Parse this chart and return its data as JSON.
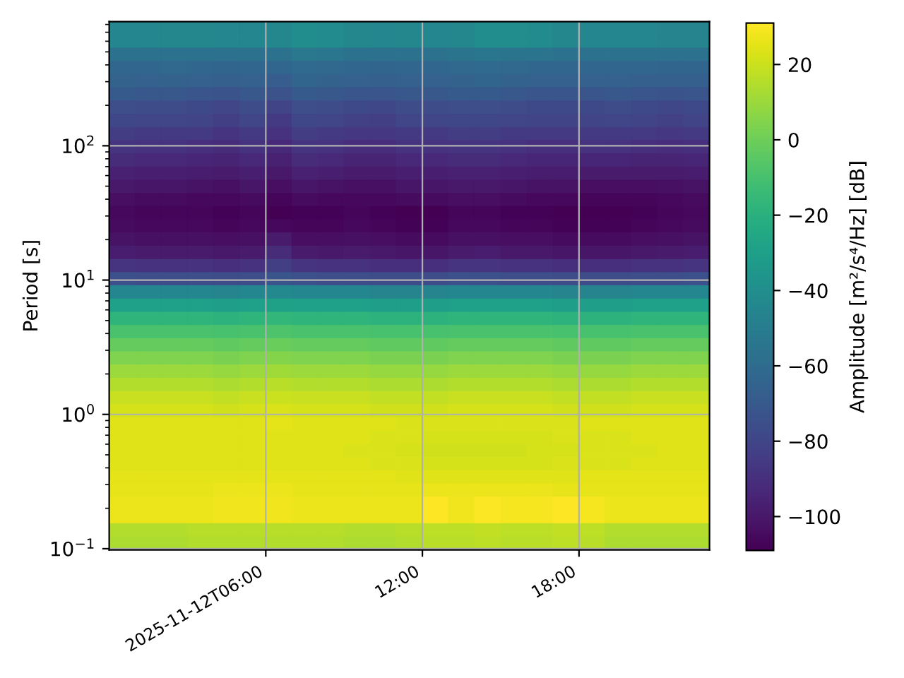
{
  "chart_data": {
    "type": "heatmap",
    "ylabel": "Period [s]",
    "clabel": "Amplitude [m²/s⁴/Hz] [dB]",
    "x": [
      "2025-11-12T00:30",
      "2025-11-12T01:30",
      "2025-11-12T02:30",
      "2025-11-12T03:30",
      "2025-11-12T04:30",
      "2025-11-12T05:30",
      "2025-11-12T06:30",
      "2025-11-12T07:30",
      "2025-11-12T08:30",
      "2025-11-12T09:30",
      "2025-11-12T10:30",
      "2025-11-12T11:30",
      "2025-11-12T12:30",
      "2025-11-12T13:30",
      "2025-11-12T14:30",
      "2025-11-12T15:30",
      "2025-11-12T16:30",
      "2025-11-12T17:30",
      "2025-11-12T18:30",
      "2025-11-12T19:30",
      "2025-11-12T20:30",
      "2025-11-12T21:30",
      "2025-11-12T22:30"
    ],
    "cells": [
      [
        -45,
        -45,
        -44,
        -44,
        -45,
        -45,
        -44,
        -41,
        -42,
        -44,
        -45,
        -44,
        -45,
        -44,
        -41,
        -41,
        -42,
        -44,
        -45,
        -45,
        -45,
        -46,
        -46
      ],
      [
        -45,
        -45,
        -44,
        -44,
        -45,
        -45,
        -44,
        -41,
        -42,
        -44,
        -45,
        -44,
        -45,
        -44,
        -41,
        -41,
        -42,
        -44,
        -45,
        -45,
        -45,
        -46,
        -46
      ],
      [
        -56,
        -57,
        -56,
        -56,
        -57,
        -56,
        -56,
        -53,
        -54,
        -56,
        -57,
        -56,
        -56,
        -55,
        -54,
        -55,
        -55,
        -56,
        -56,
        -56,
        -56,
        -57,
        -57
      ],
      [
        -63,
        -63,
        -62,
        -63,
        -64,
        -63,
        -63,
        -61,
        -62,
        -63,
        -64,
        -63,
        -63,
        -62,
        -61,
        -62,
        -63,
        -63,
        -63,
        -63,
        -63,
        -64,
        -64
      ],
      [
        -65,
        -66,
        -65,
        -66,
        -67,
        -66,
        -68,
        -64,
        -65,
        -66,
        -67,
        -66,
        -66,
        -65,
        -64,
        -65,
        -66,
        -66,
        -66,
        -66,
        -67,
        -67,
        -67
      ],
      [
        -70,
        -71,
        -71,
        -72,
        -73,
        -71,
        -74,
        -70,
        -71,
        -72,
        -72,
        -71,
        -71,
        -70,
        -70,
        -71,
        -72,
        -72,
        -72,
        -71,
        -72,
        -73,
        -72
      ],
      [
        -76,
        -77,
        -77,
        -78,
        -80,
        -77,
        -81,
        -76,
        -77,
        -78,
        -79,
        -77,
        -77,
        -76,
        -76,
        -77,
        -78,
        -78,
        -78,
        -77,
        -78,
        -79,
        -78
      ],
      [
        -79,
        -80,
        -80,
        -81,
        -83,
        -80,
        -85,
        -79,
        -80,
        -82,
        -83,
        -80,
        -80,
        -79,
        -79,
        -80,
        -81,
        -81,
        -81,
        -80,
        -81,
        -82,
        -81
      ],
      [
        -84,
        -85,
        -85,
        -86,
        -88,
        -85,
        -89,
        -84,
        -85,
        -87,
        -87,
        -85,
        -85,
        -84,
        -84,
        -85,
        -86,
        -86,
        -85,
        -85,
        -86,
        -87,
        -86
      ],
      [
        -88,
        -89,
        -89,
        -90,
        -92,
        -89,
        -93,
        -88,
        -89,
        -91,
        -91,
        -89,
        -89,
        -88,
        -88,
        -89,
        -90,
        -90,
        -89,
        -89,
        -90,
        -91,
        -90
      ],
      [
        -92,
        -93,
        -93,
        -94,
        -95,
        -93,
        -96,
        -92,
        -93,
        -95,
        -95,
        -93,
        -93,
        -92,
        -92,
        -93,
        -94,
        -94,
        -94,
        -94,
        -95,
        -95,
        -94
      ],
      [
        -96,
        -97,
        -97,
        -98,
        -99,
        -97,
        -100,
        -96,
        -97,
        -99,
        -99,
        -97,
        -97,
        -96,
        -96,
        -97,
        -98,
        -98,
        -99,
        -99,
        -99,
        -99,
        -98
      ],
      [
        -100,
        -101,
        -101,
        -102,
        -103,
        -101,
        -104,
        -101,
        -102,
        -103,
        -103,
        -101,
        -101,
        -100,
        -100,
        -101,
        -102,
        -102,
        -104,
        -104,
        -104,
        -103,
        -102
      ],
      [
        -104,
        -105,
        -105,
        -106,
        -106,
        -105,
        -107,
        -105,
        -106,
        -106,
        -106,
        -105,
        -105,
        -104,
        -104,
        -105,
        -106,
        -106,
        -107,
        -107,
        -107,
        -106,
        -105
      ],
      [
        -106,
        -107,
        -107,
        -107,
        -108,
        -107,
        -109,
        -108,
        -108,
        -107,
        -108,
        -109,
        -109,
        -107,
        -107,
        -108,
        -108,
        -109,
        -109,
        -109,
        -108,
        -107,
        -106
      ],
      [
        -105,
        -106,
        -106,
        -106,
        -107,
        -106,
        -106,
        -107,
        -107,
        -106,
        -107,
        -108,
        -108,
        -106,
        -106,
        -107,
        -107,
        -108,
        -108,
        -108,
        -107,
        -106,
        -105
      ],
      [
        -102,
        -103,
        -103,
        -103,
        -104,
        -103,
        -99,
        -104,
        -104,
        -103,
        -104,
        -105,
        -105,
        -103,
        -103,
        -104,
        -104,
        -105,
        -105,
        -105,
        -104,
        -103,
        -102
      ],
      [
        -98,
        -99,
        -99,
        -99,
        -100,
        -99,
        -92,
        -99,
        -100,
        -99,
        -100,
        -101,
        -101,
        -99,
        -98,
        -100,
        -100,
        -101,
        -101,
        -101,
        -100,
        -99,
        -98
      ],
      [
        -88,
        -89,
        -89,
        -89,
        -90,
        -89,
        -83,
        -88,
        -89,
        -89,
        -90,
        -90,
        -90,
        -88,
        -88,
        -89,
        -89,
        -90,
        -90,
        -90,
        -89,
        -89,
        -88
      ],
      [
        -75,
        -76,
        -76,
        -76,
        -77,
        -76,
        -72,
        -75,
        -76,
        -76,
        -77,
        -77,
        -77,
        -75,
        -75,
        -76,
        -76,
        -77,
        -77,
        -77,
        -76,
        -76,
        -75
      ],
      [
        -45,
        -45,
        -45,
        -45,
        -46,
        -45,
        -43,
        -45,
        -45,
        -45,
        -46,
        -46,
        -46,
        -45,
        -45,
        -45,
        -45,
        -46,
        -46,
        -46,
        -45,
        -45,
        -45
      ],
      [
        -30,
        -30,
        -30,
        -30,
        -31,
        -30,
        -29,
        -30,
        -30,
        -30,
        -31,
        -31,
        -31,
        -30,
        -30,
        -30,
        -30,
        -31,
        -31,
        -31,
        -30,
        -30,
        -30
      ],
      [
        -18,
        -18,
        -18,
        -18,
        -19,
        -18,
        -17,
        -18,
        -18,
        -18,
        -19,
        -19,
        -19,
        -18,
        -18,
        -18,
        -18,
        -19,
        -19,
        -19,
        -18,
        -18,
        -18
      ],
      [
        -9,
        -9,
        -9,
        -9,
        -10,
        -9,
        -8,
        -9,
        -9,
        -9,
        -10,
        -10,
        -10,
        -9,
        -9,
        -9,
        -9,
        -10,
        -10,
        -10,
        -9,
        -9,
        -9
      ],
      [
        -2,
        -2,
        -2,
        -2,
        -3,
        -2,
        -1,
        -2,
        -2,
        -2,
        -3,
        -3,
        -3,
        -2,
        -2,
        -2,
        -2,
        -3,
        -3,
        -3,
        -2,
        -2,
        -2
      ],
      [
        4,
        4,
        4,
        4,
        3,
        4,
        5,
        4,
        4,
        4,
        3,
        3,
        3,
        4,
        4,
        4,
        4,
        3,
        3,
        3,
        4,
        4,
        4
      ],
      [
        10,
        10,
        10,
        10,
        9,
        10,
        11,
        10,
        10,
        10,
        9,
        9,
        9,
        10,
        10,
        10,
        10,
        9,
        9,
        9,
        10,
        10,
        10
      ],
      [
        15,
        15,
        15,
        15,
        14,
        15,
        16,
        15,
        15,
        15,
        14,
        14,
        14,
        15,
        15,
        15,
        15,
        14,
        14,
        14,
        15,
        15,
        15
      ],
      [
        19,
        19,
        19,
        19,
        18,
        19,
        20,
        19,
        19,
        19,
        18,
        18,
        18,
        19,
        19,
        19,
        19,
        18,
        18,
        18,
        19,
        19,
        19
      ],
      [
        22,
        22,
        22,
        22,
        21,
        22,
        23,
        22,
        22,
        22,
        21,
        21,
        21,
        22,
        22,
        22,
        22,
        21,
        21,
        21,
        22,
        22,
        22
      ],
      [
        24,
        24,
        24,
        24,
        24,
        24,
        25,
        24,
        24,
        24,
        24,
        23,
        23,
        23,
        23,
        23,
        23,
        23,
        24,
        24,
        24,
        24,
        24
      ],
      [
        24,
        24,
        24,
        24,
        24,
        24,
        24,
        24,
        24,
        24,
        23,
        23,
        22,
        22,
        22,
        22,
        22,
        23,
        23,
        23,
        24,
        24,
        24
      ],
      [
        24,
        24,
        24,
        24,
        24,
        24,
        24,
        24,
        24,
        23,
        23,
        22,
        21,
        21,
        21,
        21,
        22,
        22,
        23,
        23,
        23,
        24,
        24
      ],
      [
        24,
        24,
        24,
        24,
        24,
        24,
        24,
        24,
        24,
        24,
        23,
        23,
        22,
        22,
        22,
        22,
        22,
        23,
        23,
        23,
        24,
        24,
        24
      ],
      [
        25,
        25,
        25,
        25,
        25,
        25,
        25,
        25,
        25,
        25,
        25,
        24,
        24,
        24,
        24,
        24,
        24,
        24,
        25,
        25,
        25,
        25,
        25
      ],
      [
        26,
        26,
        26,
        26,
        27,
        27,
        27,
        26,
        26,
        26,
        26,
        26,
        27,
        27,
        27,
        27,
        27,
        26,
        26,
        26,
        26,
        26,
        26
      ],
      [
        27,
        27,
        27,
        27,
        28,
        28,
        28,
        27,
        27,
        27,
        27,
        27,
        31,
        28,
        30,
        29,
        29,
        31,
        29,
        27,
        27,
        27,
        27
      ],
      [
        27,
        27,
        27,
        27,
        28,
        28,
        28,
        27,
        27,
        27,
        27,
        27,
        31,
        28,
        30,
        29,
        29,
        31,
        29,
        27,
        27,
        27,
        27
      ],
      [
        15,
        15,
        15,
        16,
        16,
        16,
        16,
        16,
        16,
        15,
        15,
        16,
        17,
        17,
        18,
        17,
        17,
        18,
        17,
        15,
        15,
        15,
        15
      ],
      [
        14,
        14,
        14,
        15,
        15,
        15,
        15,
        15,
        15,
        14,
        14,
        15,
        16,
        16,
        17,
        16,
        16,
        17,
        16,
        14,
        14,
        14,
        14
      ]
    ],
    "clim": [
      -109,
      31
    ],
    "cticks": [
      {
        "value": -100,
        "label": "−100"
      },
      {
        "value": -80,
        "label": "−80"
      },
      {
        "value": -60,
        "label": "−60"
      },
      {
        "value": -40,
        "label": "−40"
      },
      {
        "value": -20,
        "label": "−20"
      },
      0,
      20
    ],
    "xlim": [
      "2025-11-12T00:00",
      "2025-11-12T23:00"
    ],
    "xticks": [
      {
        "value": "2025-11-12T06:00",
        "label": "2025-11-12T06:00"
      },
      {
        "value": "2025-11-12T12:00",
        "label": "12:00"
      },
      {
        "value": "2025-11-12T18:00",
        "label": "18:00"
      }
    ],
    "ylim": [
      0.098,
      840
    ],
    "yticks": [
      {
        "value": 0.1,
        "label": "10$^{−1}$"
      },
      {
        "value": 1,
        "label": "10$^{0}$"
      },
      {
        "value": 10,
        "label": "10$^{1}$"
      },
      {
        "value": 100,
        "label": "10$^{2}$"
      }
    ],
    "log": "y",
    "grid": true
  }
}
